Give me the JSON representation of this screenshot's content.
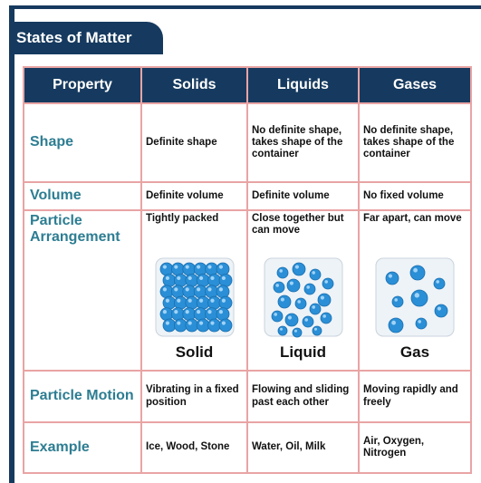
{
  "title": "States of Matter",
  "table": {
    "header": [
      "Property",
      "Solids",
      "Liquids",
      "Gases"
    ],
    "rows": [
      [
        "Shape",
        "Definite shape",
        "No definite shape, takes shape of the container",
        "No definite shape, takes shape of the container"
      ],
      [
        "Volume",
        "Definite volume",
        "Definite volume",
        "No fixed volume"
      ],
      [
        "Particle Arrangement",
        "Tightly packed",
        "Close together but can move",
        "Far apart, can move"
      ],
      [
        "Particle Motion",
        "Vibrating in a fixed position",
        "Flowing and sliding past each other",
        "Moving rapidly and freely"
      ],
      [
        "Example",
        "Ice, Wood, Stone",
        "Water, Oil, Milk",
        "Air, Oxygen, Nitrogen"
      ]
    ],
    "images": [
      "Solid",
      "Liquid",
      "Gas"
    ]
  }
}
